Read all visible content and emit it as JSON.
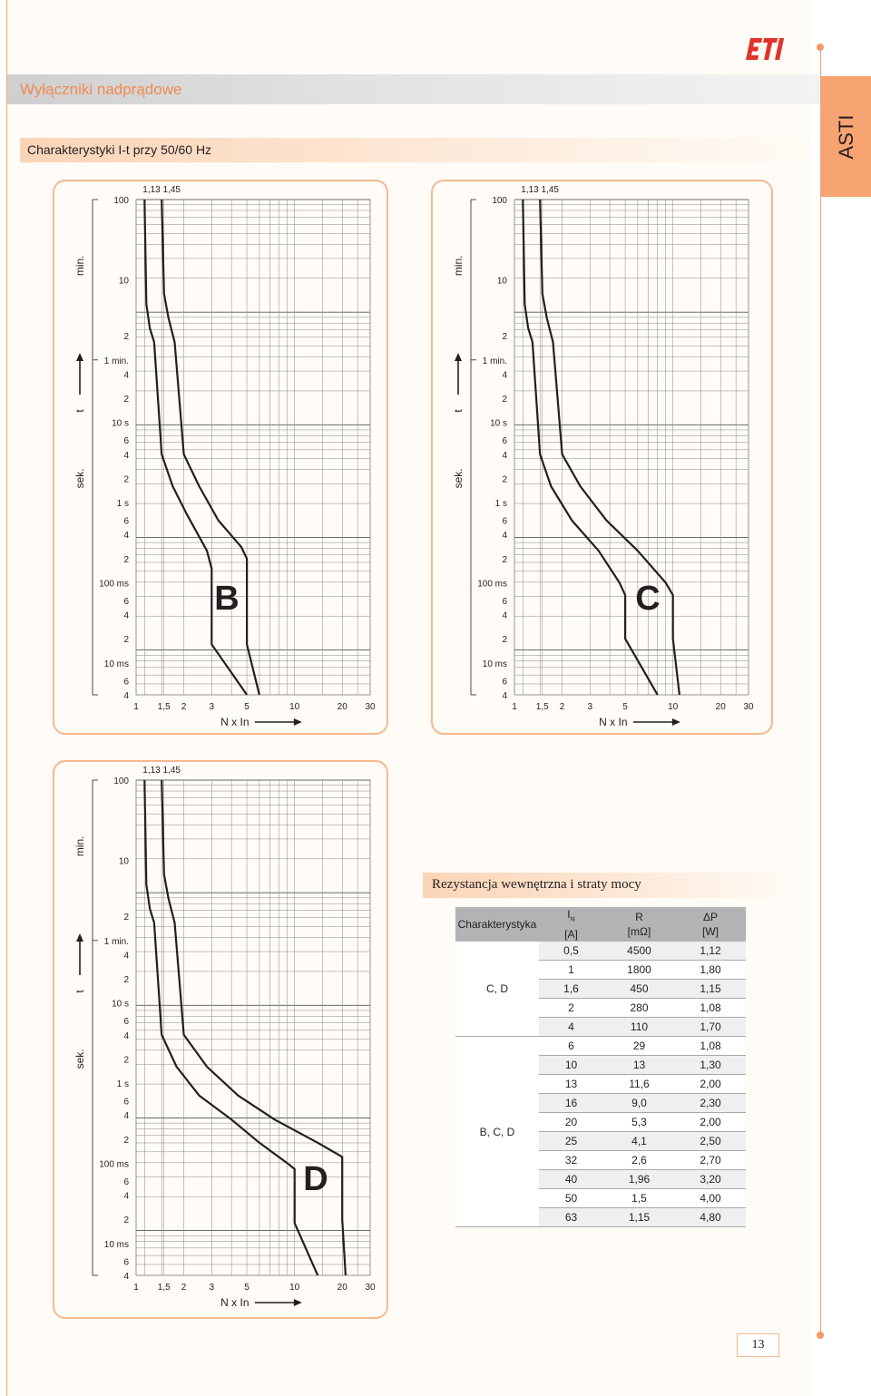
{
  "header": {
    "title": "Wyłączniki nadprądowe",
    "section_title": "Charakterystyki I-t przy 50/60 Hz",
    "side_tab": "ASTI",
    "brand": "ETI",
    "accent_color": "#f7a472",
    "page_number": "13"
  },
  "axes": {
    "y_tick_labels": [
      "100",
      "10",
      "2",
      "1 min.",
      "4",
      "2",
      "10 s",
      "6",
      "4",
      "2",
      "1 s",
      "6",
      "4",
      "2",
      "100 ms",
      "6",
      "4",
      "2",
      "10 ms",
      "6",
      "4"
    ],
    "x_tick_labels": [
      "1",
      "1,5",
      "2",
      "3",
      "5",
      "10",
      "20",
      "30"
    ],
    "top_marks": "1,13 1,45",
    "min_label": "min.",
    "sek_label": "sek.",
    "t_label": "t",
    "x_axis_label": "N x In"
  },
  "chart_data": [
    {
      "type": "line",
      "label": "B",
      "xscale": "log",
      "xlabel": "N x In",
      "ylabel": "t",
      "x_ticks": [
        1,
        1.5,
        2,
        3,
        5,
        10,
        20,
        30
      ],
      "series": [
        {
          "line": "lower",
          "points": [
            [
              1.13,
              100
            ],
            [
              1.16,
              30
            ],
            [
              1.22,
              15
            ],
            [
              1.3,
              10
            ],
            [
              1.45,
              4
            ],
            [
              1.7,
              1.6
            ],
            [
              2.1,
              0.7
            ],
            [
              2.8,
              0.25
            ],
            [
              3,
              0.15
            ],
            [
              3,
              0.017
            ],
            [
              5,
              0.004
            ]
          ]
        },
        {
          "line": "upper",
          "points": [
            [
              1.45,
              100
            ],
            [
              1.5,
              40
            ],
            [
              1.6,
              20
            ],
            [
              1.75,
              10
            ],
            [
              2.0,
              4
            ],
            [
              2.5,
              1.6
            ],
            [
              3.3,
              0.6
            ],
            [
              4.6,
              0.28
            ],
            [
              5,
              0.2
            ],
            [
              5,
              0.017
            ],
            [
              6,
              0.004
            ]
          ]
        }
      ]
    },
    {
      "type": "line",
      "label": "C",
      "xscale": "log",
      "xlabel": "N x In",
      "ylabel": "t",
      "x_ticks": [
        1,
        1.5,
        2,
        3,
        5,
        10,
        20,
        30
      ],
      "series": [
        {
          "line": "lower",
          "points": [
            [
              1.13,
              100
            ],
            [
              1.16,
              30
            ],
            [
              1.22,
              15
            ],
            [
              1.3,
              10
            ],
            [
              1.45,
              4
            ],
            [
              1.7,
              1.6
            ],
            [
              2.3,
              0.6
            ],
            [
              3.4,
              0.25
            ],
            [
              4.6,
              0.1
            ],
            [
              5,
              0.07
            ],
            [
              5,
              0.02
            ],
            [
              8,
              0.004
            ]
          ]
        },
        {
          "line": "upper",
          "points": [
            [
              1.45,
              100
            ],
            [
              1.5,
              40
            ],
            [
              1.6,
              20
            ],
            [
              1.75,
              10
            ],
            [
              2.0,
              4
            ],
            [
              2.6,
              1.6
            ],
            [
              3.8,
              0.6
            ],
            [
              6,
              0.25
            ],
            [
              9,
              0.1
            ],
            [
              10,
              0.07
            ],
            [
              10,
              0.02
            ],
            [
              11,
              0.004
            ]
          ]
        }
      ]
    },
    {
      "type": "line",
      "label": "D",
      "xscale": "log",
      "xlabel": "N x In",
      "ylabel": "t",
      "x_ticks": [
        1,
        1.5,
        2,
        3,
        5,
        10,
        20,
        30
      ],
      "series": [
        {
          "line": "lower",
          "points": [
            [
              1.13,
              100
            ],
            [
              1.16,
              30
            ],
            [
              1.22,
              15
            ],
            [
              1.3,
              10
            ],
            [
              1.45,
              4
            ],
            [
              1.8,
              1.6
            ],
            [
              2.5,
              0.7
            ],
            [
              4,
              0.35
            ],
            [
              6,
              0.18
            ],
            [
              9,
              0.1
            ],
            [
              10,
              0.085
            ],
            [
              10,
              0.018
            ],
            [
              14,
              0.004
            ]
          ]
        },
        {
          "line": "upper",
          "points": [
            [
              1.45,
              100
            ],
            [
              1.5,
              40
            ],
            [
              1.6,
              20
            ],
            [
              1.75,
              10
            ],
            [
              2.0,
              4
            ],
            [
              2.8,
              1.6
            ],
            [
              4.4,
              0.7
            ],
            [
              7.5,
              0.35
            ],
            [
              14,
              0.18
            ],
            [
              20,
              0.12
            ],
            [
              20,
              0.02
            ],
            [
              21,
              0.004
            ]
          ]
        }
      ]
    },
    {
      "type": "table",
      "title": "Rezystancja wewnętrzna i straty mocy",
      "columns": [
        "Charakterystyka",
        "IN [A]",
        "R [mΩ]",
        "ΔP [W]"
      ],
      "groups": [
        {
          "char": "C, D",
          "rows": [
            [
              "0,5",
              "4500",
              "1,12"
            ],
            [
              "1",
              "1800",
              "1,80"
            ],
            [
              "1,6",
              "450",
              "1,15"
            ],
            [
              "2",
              "280",
              "1,08"
            ],
            [
              "4",
              "110",
              "1,70"
            ]
          ]
        },
        {
          "char": "B, C, D",
          "rows": [
            [
              "6",
              "29",
              "1,08"
            ],
            [
              "10",
              "13",
              "1,30"
            ],
            [
              "13",
              "11,6",
              "2,00"
            ],
            [
              "16",
              "9,0",
              "2,30"
            ],
            [
              "20",
              "5,3",
              "2,00"
            ],
            [
              "25",
              "4,1",
              "2,50"
            ],
            [
              "32",
              "2,6",
              "2,70"
            ],
            [
              "40",
              "1,96",
              "3,20"
            ],
            [
              "50",
              "1,5",
              "4,00"
            ],
            [
              "63",
              "1,15",
              "4,80"
            ]
          ]
        }
      ]
    }
  ]
}
